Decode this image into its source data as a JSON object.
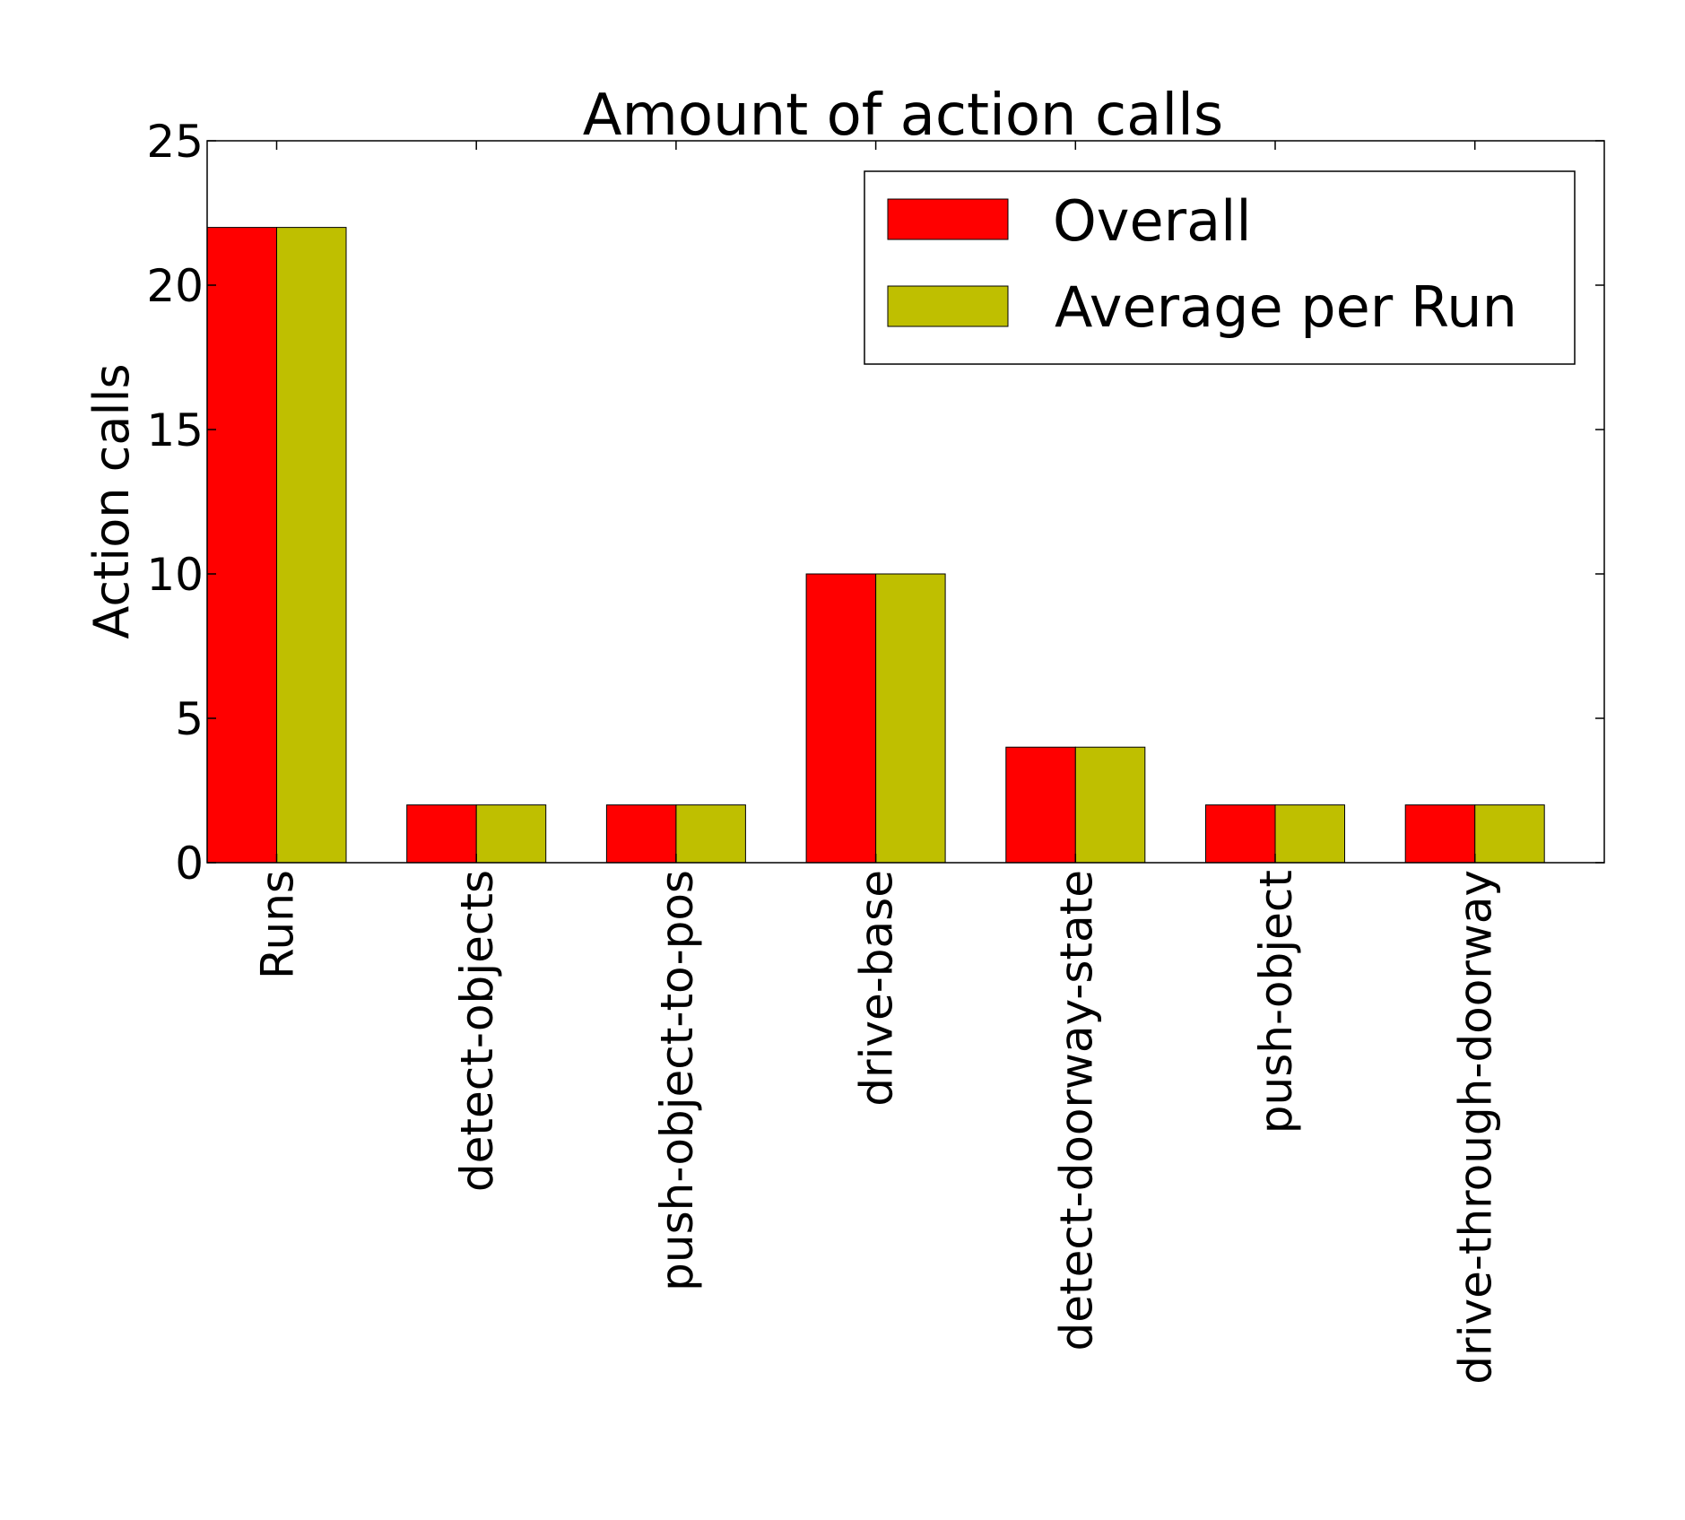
{
  "chart_data": {
    "type": "bar",
    "title": "Amount of action calls",
    "xlabel": "",
    "ylabel": "Action calls",
    "ylim": [
      0,
      25
    ],
    "yticks": [
      0,
      5,
      10,
      15,
      20,
      25
    ],
    "grid": false,
    "legend_position": "top-right",
    "categories": [
      "Runs",
      "detect-objects",
      "push-object-to-pos",
      "drive-base",
      "detect-doorway-state",
      "push-object",
      "drive-through-doorway"
    ],
    "series": [
      {
        "name": "Overall",
        "color": "#ff0000",
        "values": [
          22,
          2,
          2,
          10,
          4,
          2,
          2
        ]
      },
      {
        "name": "Average per Run",
        "color": "#bfbf00",
        "values": [
          22,
          2,
          2,
          10,
          4,
          2,
          2
        ]
      }
    ]
  }
}
